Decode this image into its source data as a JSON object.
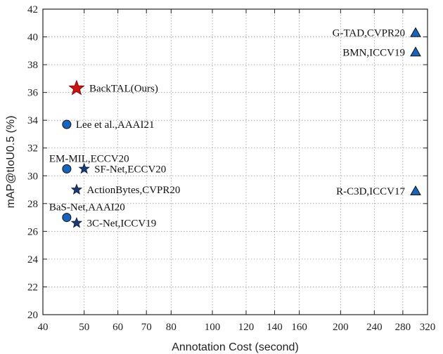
{
  "chart_data": {
    "type": "scatter",
    "xlabel": "Annotation Cost (second)",
    "ylabel": "mAP@tIoU0.5 (%)",
    "x_scale": "log",
    "xlim": [
      40,
      320
    ],
    "ylim": [
      20,
      42
    ],
    "xticks": [
      40,
      50,
      60,
      70,
      80,
      100,
      120,
      140,
      160,
      200,
      240,
      280,
      320
    ],
    "xtick_labels": [
      "40",
      "50",
      "60",
      "70",
      "80",
      "100",
      "120",
      "140",
      "160",
      "200",
      "240",
      "280",
      "320"
    ],
    "yticks": [
      20,
      22,
      24,
      26,
      28,
      30,
      32,
      34,
      36,
      38,
      40,
      42
    ],
    "ytick_labels": [
      "20",
      "22",
      "24",
      "26",
      "28",
      "30",
      "32",
      "34",
      "36",
      "38",
      "40",
      "42"
    ],
    "grid": "dotted",
    "points": [
      {
        "label": "BackTAL(Ours)",
        "x": 48,
        "y": 36.3,
        "marker": "star",
        "color": "#cc1111",
        "label_color": "#cc1111",
        "anchor": "right"
      },
      {
        "label": "Lee et al.,AAAI21",
        "x": 45.5,
        "y": 33.7,
        "marker": "circle",
        "color": "#1565c0",
        "label_color": "#111111",
        "anchor": "right"
      },
      {
        "label": "EM-MIL,ECCV20",
        "x": 45.5,
        "y": 30.5,
        "marker": "circle",
        "color": "#1565c0",
        "label_color": "#111111",
        "anchor": "above"
      },
      {
        "label": "SF-Net,ECCV20",
        "x": 50,
        "y": 30.5,
        "marker": "star",
        "color": "#1a3a7a",
        "label_color": "#111111",
        "anchor": "right"
      },
      {
        "label": "ActionBytes,CVPR20",
        "x": 48,
        "y": 29.0,
        "marker": "star",
        "color": "#1a3a7a",
        "label_color": "#111111",
        "anchor": "right"
      },
      {
        "label": "BaS-Net,AAAI20",
        "x": 45.5,
        "y": 27.0,
        "marker": "circle",
        "color": "#1565c0",
        "label_color": "#111111",
        "anchor": "above"
      },
      {
        "label": "3C-Net,ICCV19",
        "x": 48,
        "y": 26.6,
        "marker": "star",
        "color": "#1a3a7a",
        "label_color": "#111111",
        "anchor": "right"
      },
      {
        "label": "G-TAD,CVPR20",
        "x": 300,
        "y": 40.3,
        "marker": "triangle",
        "color": "#1565c0",
        "label_color": "#111111",
        "anchor": "left"
      },
      {
        "label": "BMN,ICCV19",
        "x": 300,
        "y": 38.9,
        "marker": "triangle",
        "color": "#1565c0",
        "label_color": "#111111",
        "anchor": "left"
      },
      {
        "label": "R-C3D,ICCV17",
        "x": 300,
        "y": 28.9,
        "marker": "triangle",
        "color": "#1565c0",
        "label_color": "#111111",
        "anchor": "left"
      }
    ]
  }
}
